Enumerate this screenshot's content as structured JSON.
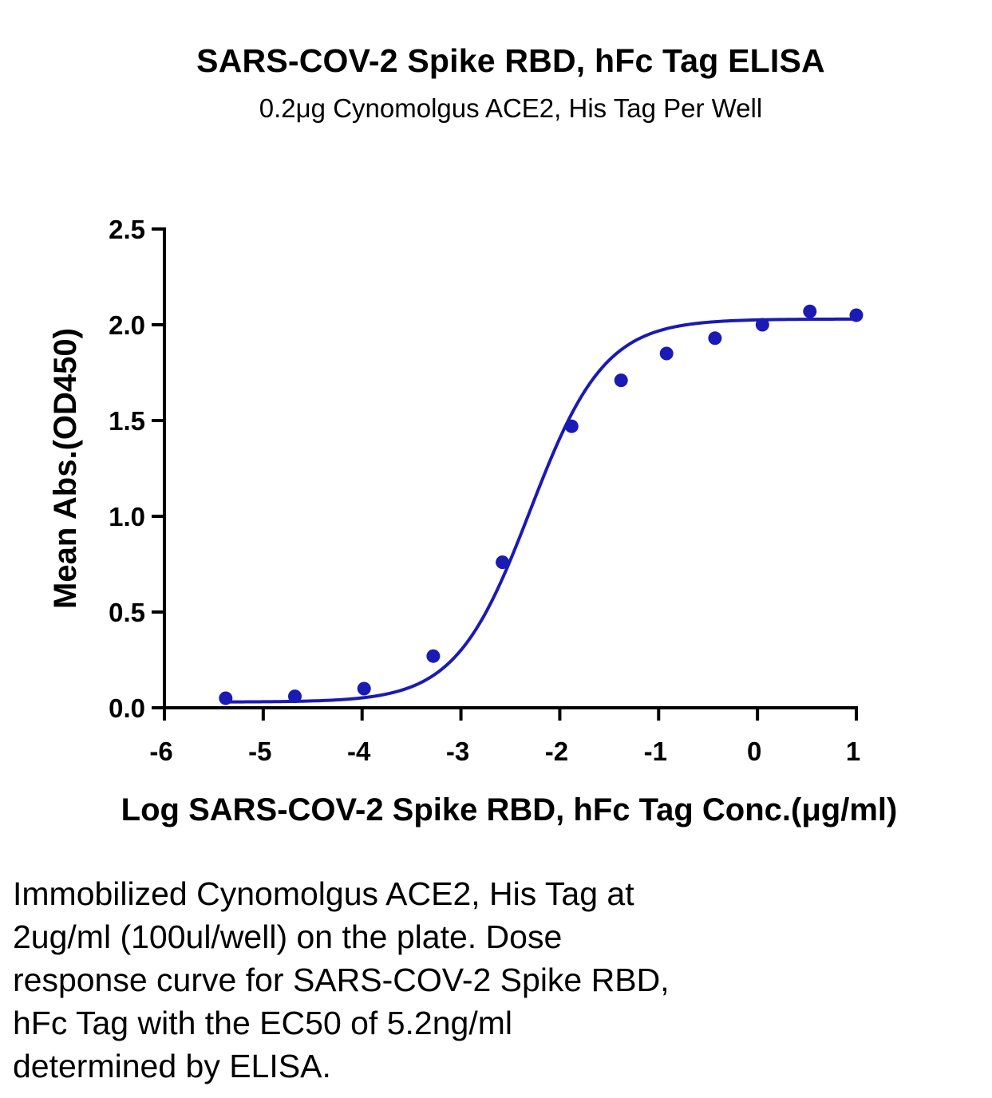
{
  "chart_data": {
    "type": "scatter",
    "title": "SARS-COV-2 Spike RBD, hFc Tag ELISA",
    "subtitle": "0.2μg Cynomolgus ACE2, His Tag Per Well",
    "xlabel": "Log SARS-COV-2 Spike RBD, hFc Tag Conc.(μg/ml)",
    "ylabel": "Mean Abs.(OD450)",
    "xlim": [
      -6,
      1
    ],
    "ylim": [
      0,
      2.5
    ],
    "x_ticks": [
      -6,
      -5,
      -4,
      -3,
      -2,
      -1,
      0,
      1
    ],
    "x_tick_labels": [
      "-6",
      "-5",
      "-4",
      "-3",
      "-2",
      "-1",
      "0",
      "1"
    ],
    "y_ticks": [
      0,
      0.5,
      1,
      1.5,
      2,
      2.5
    ],
    "y_tick_labels": [
      "0.0",
      "0.5",
      "1.0",
      "1.5",
      "2.0",
      "2.5"
    ],
    "grid": false,
    "color": "#1a1ab4",
    "points": {
      "x": [
        -5.38,
        -4.68,
        -3.98,
        -3.28,
        -2.58,
        -1.88,
        -1.38,
        -0.92,
        -0.43,
        0.05,
        0.53,
        1.0
      ],
      "y": [
        0.05,
        0.06,
        0.1,
        0.27,
        0.76,
        1.47,
        1.71,
        1.85,
        1.93,
        2.0,
        2.07,
        2.05
      ]
    },
    "fit_curve": {
      "model": "4PL",
      "bottom": 0.03,
      "top": 2.03,
      "logEC50": -2.3,
      "hill": 1.15
    }
  },
  "caption": "Immobilized Cynomolgus ACE2, His Tag at\n2ug/ml (100ul/well) on the plate. Dose\nresponse curve for SARS-COV-2 Spike RBD,\nhFc Tag with the EC50 of 5.2ng/ml\ndetermined by ELISA."
}
